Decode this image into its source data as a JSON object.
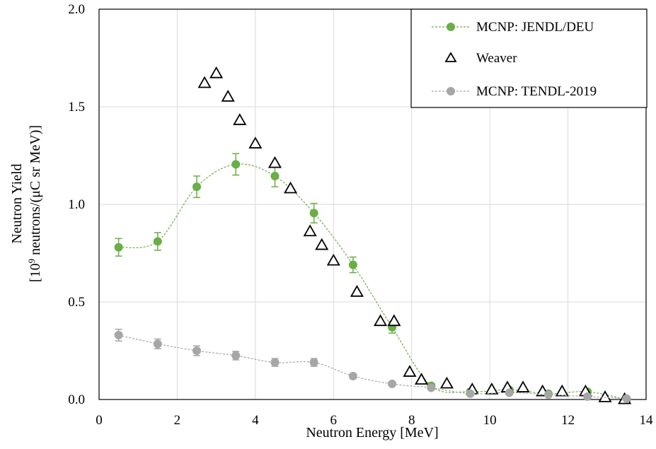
{
  "chart_data": {
    "type": "scatter",
    "xlabel": "Neutron Energy [MeV]",
    "ylabel_line1": "Neutron Yield",
    "ylabel_line2_pre": "[10",
    "ylabel_line2_sup": "9",
    "ylabel_line2_post": " neutrons/(μC sr MeV)]",
    "xlim": [
      0,
      14
    ],
    "ylim": [
      0,
      2.0
    ],
    "x_ticks": [
      "0",
      "2",
      "4",
      "6",
      "8",
      "10",
      "12",
      "14"
    ],
    "y_ticks": [
      "0.0",
      "0.5",
      "1.0",
      "1.5",
      "2.0"
    ],
    "grid": true,
    "legend_position": "top-right",
    "series": [
      {
        "name": "MCNP: JENDL/DEU",
        "marker": "filled-circle",
        "color": "#6aae46",
        "line": "dashed-smooth",
        "error_bars": true,
        "x": [
          0.5,
          1.5,
          2.5,
          3.5,
          4.5,
          5.5,
          6.5,
          7.5,
          8.5,
          9.5,
          10.5,
          11.5,
          12.5,
          13.5
        ],
        "y": [
          0.78,
          0.81,
          1.09,
          1.205,
          1.145,
          0.955,
          0.69,
          0.37,
          0.07,
          0.04,
          0.05,
          0.03,
          0.04,
          0.0
        ],
        "err": [
          0.045,
          0.045,
          0.055,
          0.055,
          0.055,
          0.05,
          0.04,
          0.03,
          0.006,
          0.005,
          0.005,
          0.005,
          0.005,
          0.004
        ]
      },
      {
        "name": "Weaver",
        "marker": "open-triangle",
        "color": "#000000",
        "line": "none",
        "error_bars": false,
        "x": [
          2.7,
          3.0,
          3.3,
          3.6,
          4.0,
          4.5,
          4.9,
          5.4,
          5.7,
          6.0,
          6.6,
          7.2,
          7.55,
          7.95,
          8.25,
          8.9,
          9.55,
          10.05,
          10.45,
          10.85,
          11.35,
          11.85,
          12.45,
          12.95,
          13.45
        ],
        "y": [
          1.62,
          1.67,
          1.55,
          1.43,
          1.31,
          1.21,
          1.08,
          0.86,
          0.79,
          0.71,
          0.55,
          0.4,
          0.4,
          0.14,
          0.1,
          0.08,
          0.05,
          0.05,
          0.06,
          0.06,
          0.04,
          0.04,
          0.04,
          0.01,
          0.0
        ]
      },
      {
        "name": "MCNP: TENDL-2019",
        "marker": "filled-circle",
        "color": "#a6a6a6",
        "line": "dashed-smooth",
        "error_bars": true,
        "x": [
          0.5,
          1.5,
          2.5,
          3.5,
          4.5,
          5.5,
          6.5,
          7.5,
          8.5,
          9.5,
          10.5,
          11.5,
          12.5,
          13.5
        ],
        "y": [
          0.33,
          0.285,
          0.25,
          0.225,
          0.19,
          0.19,
          0.12,
          0.08,
          0.06,
          0.03,
          0.035,
          0.025,
          0.015,
          0.005
        ],
        "err": [
          0.03,
          0.025,
          0.025,
          0.022,
          0.02,
          0.02,
          0.012,
          0.006,
          0.005,
          0.004,
          0.004,
          0.003,
          0.003,
          0.002
        ]
      }
    ]
  }
}
